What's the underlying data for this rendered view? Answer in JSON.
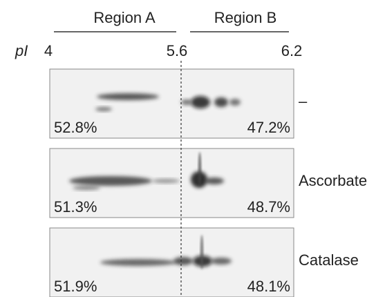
{
  "header": {
    "regions": [
      "Region A",
      "Region B"
    ],
    "axis_label": "pI",
    "ticks": [
      "4",
      "5.6",
      "6.2"
    ]
  },
  "panels": [
    {
      "label": "–",
      "left": "52.8%",
      "right": "47.2%"
    },
    {
      "label": "Ascorbate",
      "left": "51.3%",
      "right": "48.7%"
    },
    {
      "label": "Catalase",
      "left": "51.9%",
      "right": "48.1%"
    }
  ]
}
